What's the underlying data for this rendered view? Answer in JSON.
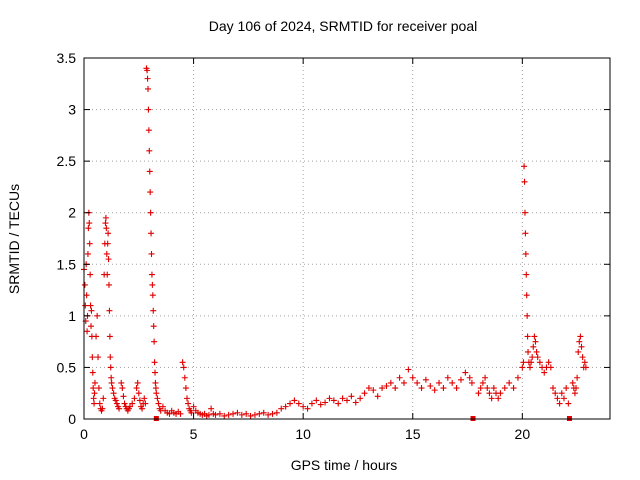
{
  "chart_data": {
    "type": "scatter",
    "title": "Day 106 of 2024, SRMTID for receiver poal",
    "xlabel": "GPS time / hours",
    "ylabel": "SRMTID / TECUs",
    "xlim": [
      0,
      24
    ],
    "ylim": [
      0,
      3.5
    ],
    "x_ticks": [
      0,
      5,
      10,
      15,
      20
    ],
    "x_tick_labels": [
      "0",
      "5",
      "10",
      "15",
      "20"
    ],
    "y_ticks": [
      0,
      0.5,
      1,
      1.5,
      2,
      2.5,
      3,
      3.5
    ],
    "y_tick_labels": [
      "0",
      "0.5",
      "1",
      "1.5",
      "2",
      "2.5",
      "3",
      "3.5"
    ],
    "grid": true,
    "marker": "plus",
    "series_color": "#e00000",
    "series": [
      {
        "name": "SRMTID",
        "points": [
          [
            0.0,
            1.45
          ],
          [
            0.04,
            1.3
          ],
          [
            0.06,
            1.1
          ],
          [
            0.08,
            0.95
          ],
          [
            0.1,
            1.5
          ],
          [
            0.12,
            1.2
          ],
          [
            0.14,
            0.85
          ],
          [
            0.16,
            1.0
          ],
          [
            0.18,
            1.6
          ],
          [
            0.2,
            1.85
          ],
          [
            0.22,
            2.0
          ],
          [
            0.24,
            1.9
          ],
          [
            0.26,
            1.7
          ],
          [
            0.28,
            1.4
          ],
          [
            0.3,
            1.1
          ],
          [
            0.32,
            0.9
          ],
          [
            0.34,
            1.05
          ],
          [
            0.36,
            0.8
          ],
          [
            0.38,
            0.6
          ],
          [
            0.4,
            0.45
          ],
          [
            0.42,
            0.3
          ],
          [
            0.44,
            0.2
          ],
          [
            0.46,
            0.15
          ],
          [
            0.48,
            0.25
          ],
          [
            0.5,
            0.35
          ],
          [
            0.55,
            0.8
          ],
          [
            0.6,
            1.0
          ],
          [
            0.64,
            0.6
          ],
          [
            0.68,
            0.3
          ],
          [
            0.72,
            0.15
          ],
          [
            0.76,
            0.1
          ],
          [
            0.8,
            0.08
          ],
          [
            0.84,
            0.1
          ],
          [
            0.88,
            0.2
          ],
          [
            0.92,
            1.4
          ],
          [
            0.95,
            1.7
          ],
          [
            0.98,
            1.9
          ],
          [
            1.0,
            1.95
          ],
          [
            1.02,
            1.85
          ],
          [
            1.04,
            1.6
          ],
          [
            1.06,
            1.4
          ],
          [
            1.08,
            1.7
          ],
          [
            1.1,
            1.8
          ],
          [
            1.12,
            1.55
          ],
          [
            1.14,
            1.3
          ],
          [
            1.16,
            1.05
          ],
          [
            1.18,
            0.8
          ],
          [
            1.2,
            0.6
          ],
          [
            1.22,
            0.5
          ],
          [
            1.24,
            0.4
          ],
          [
            1.26,
            0.35
          ],
          [
            1.3,
            0.3
          ],
          [
            1.35,
            0.25
          ],
          [
            1.4,
            0.2
          ],
          [
            1.45,
            0.18
          ],
          [
            1.5,
            0.15
          ],
          [
            1.55,
            0.12
          ],
          [
            1.6,
            0.1
          ],
          [
            1.7,
            0.35
          ],
          [
            1.75,
            0.3
          ],
          [
            1.8,
            0.22
          ],
          [
            1.85,
            0.15
          ],
          [
            1.9,
            0.12
          ],
          [
            1.95,
            0.1
          ],
          [
            2.0,
            0.08
          ],
          [
            2.05,
            0.1
          ],
          [
            2.1,
            0.12
          ],
          [
            2.2,
            0.15
          ],
          [
            2.3,
            0.2
          ],
          [
            2.4,
            0.3
          ],
          [
            2.45,
            0.35
          ],
          [
            2.5,
            0.25
          ],
          [
            2.55,
            0.18
          ],
          [
            2.6,
            0.12
          ],
          [
            2.65,
            0.1
          ],
          [
            2.7,
            0.15
          ],
          [
            2.75,
            0.2
          ],
          [
            2.8,
            0.15
          ],
          [
            2.85,
            3.4
          ],
          [
            2.88,
            3.38
          ],
          [
            2.9,
            3.3
          ],
          [
            2.92,
            3.2
          ],
          [
            2.94,
            3.0
          ],
          [
            2.96,
            2.8
          ],
          [
            2.98,
            2.6
          ],
          [
            3.0,
            2.4
          ],
          [
            3.02,
            2.2
          ],
          [
            3.04,
            2.0
          ],
          [
            3.06,
            1.8
          ],
          [
            3.08,
            1.6
          ],
          [
            3.1,
            1.4
          ],
          [
            3.12,
            1.3
          ],
          [
            3.14,
            1.2
          ],
          [
            3.16,
            1.05
          ],
          [
            3.18,
            0.9
          ],
          [
            3.2,
            0.75
          ],
          [
            3.22,
            0.55
          ],
          [
            3.24,
            0.45
          ],
          [
            3.26,
            0.35
          ],
          [
            3.28,
            0.3
          ],
          [
            3.3,
            0.25
          ],
          [
            3.35,
            0.2
          ],
          [
            3.4,
            0.15
          ],
          [
            3.45,
            0.1
          ],
          [
            3.5,
            0.08
          ],
          [
            3.6,
            0.12
          ],
          [
            3.7,
            0.08
          ],
          [
            3.8,
            0.06
          ],
          [
            3.9,
            0.05
          ],
          [
            4.0,
            0.08
          ],
          [
            4.1,
            0.06
          ],
          [
            4.2,
            0.05
          ],
          [
            4.3,
            0.07
          ],
          [
            4.4,
            0.05
          ],
          [
            4.5,
            0.55
          ],
          [
            4.55,
            0.5
          ],
          [
            4.6,
            0.4
          ],
          [
            4.65,
            0.3
          ],
          [
            4.7,
            0.2
          ],
          [
            4.75,
            0.15
          ],
          [
            4.8,
            0.1
          ],
          [
            4.85,
            0.08
          ],
          [
            4.9,
            0.06
          ],
          [
            5.0,
            0.12
          ],
          [
            5.1,
            0.08
          ],
          [
            5.2,
            0.06
          ],
          [
            5.3,
            0.05
          ],
          [
            5.4,
            0.04
          ],
          [
            5.5,
            0.05
          ],
          [
            5.6,
            0.03
          ],
          [
            5.7,
            0.04
          ],
          [
            5.8,
            0.1
          ],
          [
            5.9,
            0.05
          ],
          [
            6.0,
            0.04
          ],
          [
            6.2,
            0.05
          ],
          [
            6.4,
            0.03
          ],
          [
            6.6,
            0.04
          ],
          [
            6.8,
            0.05
          ],
          [
            7.0,
            0.06
          ],
          [
            7.2,
            0.04
          ],
          [
            7.4,
            0.05
          ],
          [
            7.6,
            0.03
          ],
          [
            7.8,
            0.04
          ],
          [
            8.0,
            0.05
          ],
          [
            8.2,
            0.06
          ],
          [
            8.4,
            0.04
          ],
          [
            8.6,
            0.05
          ],
          [
            8.8,
            0.06
          ],
          [
            9.0,
            0.1
          ],
          [
            9.2,
            0.12
          ],
          [
            9.4,
            0.15
          ],
          [
            9.6,
            0.18
          ],
          [
            9.8,
            0.15
          ],
          [
            10.0,
            0.12
          ],
          [
            10.2,
            0.1
          ],
          [
            10.4,
            0.15
          ],
          [
            10.6,
            0.18
          ],
          [
            10.8,
            0.14
          ],
          [
            11.0,
            0.16
          ],
          [
            11.2,
            0.2
          ],
          [
            11.4,
            0.18
          ],
          [
            11.6,
            0.15
          ],
          [
            11.8,
            0.2
          ],
          [
            12.0,
            0.18
          ],
          [
            12.2,
            0.22
          ],
          [
            12.4,
            0.16
          ],
          [
            12.6,
            0.2
          ],
          [
            12.8,
            0.25
          ],
          [
            13.0,
            0.3
          ],
          [
            13.2,
            0.28
          ],
          [
            13.4,
            0.22
          ],
          [
            13.6,
            0.3
          ],
          [
            13.8,
            0.32
          ],
          [
            14.0,
            0.35
          ],
          [
            14.2,
            0.3
          ],
          [
            14.4,
            0.4
          ],
          [
            14.6,
            0.35
          ],
          [
            14.8,
            0.48
          ],
          [
            15.0,
            0.4
          ],
          [
            15.2,
            0.35
          ],
          [
            15.4,
            0.3
          ],
          [
            15.6,
            0.38
          ],
          [
            15.8,
            0.32
          ],
          [
            16.0,
            0.28
          ],
          [
            16.2,
            0.35
          ],
          [
            16.4,
            0.3
          ],
          [
            16.6,
            0.4
          ],
          [
            16.8,
            0.35
          ],
          [
            17.0,
            0.3
          ],
          [
            17.2,
            0.38
          ],
          [
            17.4,
            0.45
          ],
          [
            17.6,
            0.4
          ],
          [
            17.7,
            0.35
          ],
          [
            18.0,
            0.25
          ],
          [
            18.1,
            0.3
          ],
          [
            18.2,
            0.35
          ],
          [
            18.3,
            0.4
          ],
          [
            18.4,
            0.3
          ],
          [
            18.5,
            0.25
          ],
          [
            18.6,
            0.2
          ],
          [
            18.7,
            0.3
          ],
          [
            18.8,
            0.25
          ],
          [
            18.9,
            0.2
          ],
          [
            19.0,
            0.25
          ],
          [
            19.2,
            0.3
          ],
          [
            19.4,
            0.35
          ],
          [
            19.6,
            0.3
          ],
          [
            19.8,
            0.4
          ],
          [
            20.0,
            0.5
          ],
          [
            20.05,
            0.55
          ],
          [
            20.08,
            2.45
          ],
          [
            20.1,
            2.3
          ],
          [
            20.12,
            2.0
          ],
          [
            20.14,
            1.8
          ],
          [
            20.16,
            1.6
          ],
          [
            20.18,
            1.4
          ],
          [
            20.2,
            1.2
          ],
          [
            20.22,
            1.0
          ],
          [
            20.24,
            0.8
          ],
          [
            20.26,
            0.65
          ],
          [
            20.3,
            0.55
          ],
          [
            20.35,
            0.5
          ],
          [
            20.4,
            0.55
          ],
          [
            20.45,
            0.6
          ],
          [
            20.5,
            0.7
          ],
          [
            20.55,
            0.8
          ],
          [
            20.6,
            0.75
          ],
          [
            20.65,
            0.65
          ],
          [
            20.7,
            0.6
          ],
          [
            20.8,
            0.55
          ],
          [
            20.9,
            0.5
          ],
          [
            21.0,
            0.45
          ],
          [
            21.1,
            0.5
          ],
          [
            21.2,
            0.55
          ],
          [
            21.3,
            0.5
          ],
          [
            21.4,
            0.3
          ],
          [
            21.5,
            0.25
          ],
          [
            21.6,
            0.2
          ],
          [
            21.7,
            0.15
          ],
          [
            21.8,
            0.25
          ],
          [
            21.9,
            0.2
          ],
          [
            22.0,
            0.3
          ],
          [
            22.1,
            0.15
          ],
          [
            22.3,
            0.35
          ],
          [
            22.35,
            0.3
          ],
          [
            22.4,
            0.25
          ],
          [
            22.45,
            0.3
          ],
          [
            22.5,
            0.4
          ],
          [
            22.55,
            0.65
          ],
          [
            22.6,
            0.75
          ],
          [
            22.65,
            0.8
          ],
          [
            22.7,
            0.7
          ],
          [
            22.75,
            0.6
          ],
          [
            22.8,
            0.5
          ],
          [
            22.85,
            0.55
          ],
          [
            22.9,
            0.5
          ]
        ]
      }
    ],
    "gap_markers": [
      3.3,
      17.75,
      22.15
    ]
  }
}
